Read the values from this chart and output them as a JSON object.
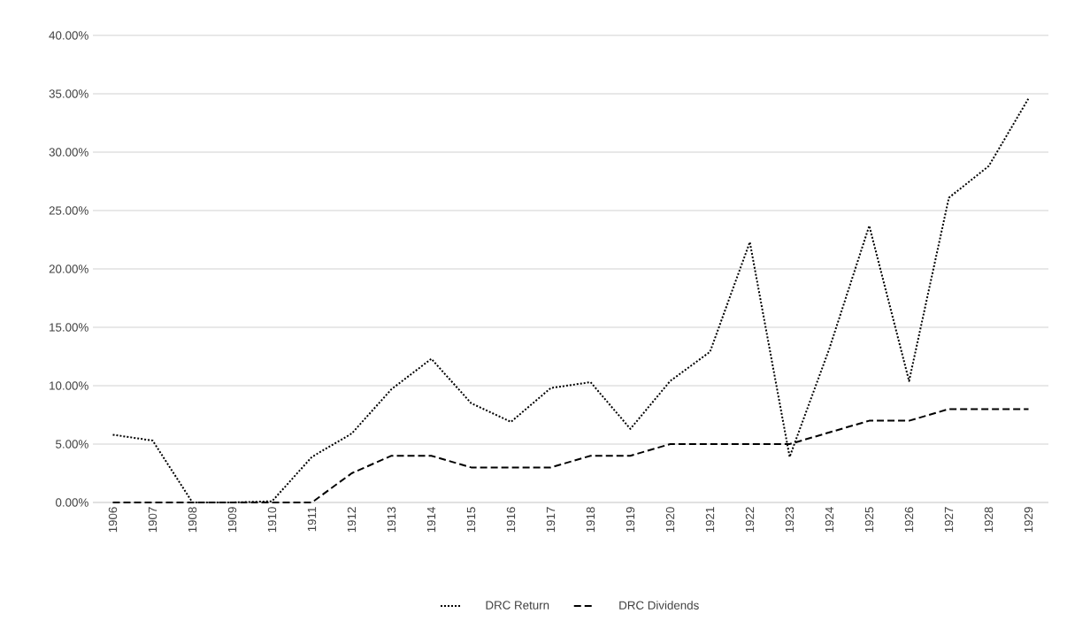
{
  "chart_data": {
    "type": "line",
    "categories": [
      "1906",
      "1907",
      "1908",
      "1909",
      "1910",
      "1911",
      "1912",
      "1913",
      "1914",
      "1915",
      "1916",
      "1917",
      "1918",
      "1919",
      "1920",
      "1921",
      "1922",
      "1923",
      "1924",
      "1925",
      "1926",
      "1927",
      "1928",
      "1929"
    ],
    "series": [
      {
        "name": "DRC Return",
        "color": "#000000",
        "line_style": "dotted",
        "values": [
          5.8,
          5.3,
          0,
          0,
          0.1,
          3.9,
          5.9,
          9.7,
          12.3,
          8.5,
          6.9,
          9.8,
          10.3,
          6.3,
          10.4,
          12.9,
          22.3,
          3.9,
          13.2,
          23.7,
          10.4,
          26.1,
          28.8,
          34.6
        ]
      },
      {
        "name": "DRC Dividends",
        "color": "#000000",
        "line_style": "dashed",
        "values": [
          0,
          0,
          0,
          0,
          0,
          0,
          2.5,
          4,
          4,
          3,
          3,
          3,
          4,
          4,
          5,
          5,
          5,
          5,
          6,
          7,
          7,
          8,
          8,
          8
        ]
      }
    ],
    "ylim": [
      0,
      40
    ],
    "yticks": [
      {
        "value": 0,
        "label": "0.00%"
      },
      {
        "value": 5,
        "label": "5.00%"
      },
      {
        "value": 10,
        "label": "10.00%"
      },
      {
        "value": 15,
        "label": "15.00%"
      },
      {
        "value": 20,
        "label": "20.00%"
      },
      {
        "value": 25,
        "label": "25.00%"
      },
      {
        "value": 30,
        "label": "30.00%"
      },
      {
        "value": 35,
        "label": "35.00%"
      },
      {
        "value": 40,
        "label": "40.00%"
      }
    ],
    "grid": "y",
    "legend": "bottom",
    "marker": "none"
  }
}
